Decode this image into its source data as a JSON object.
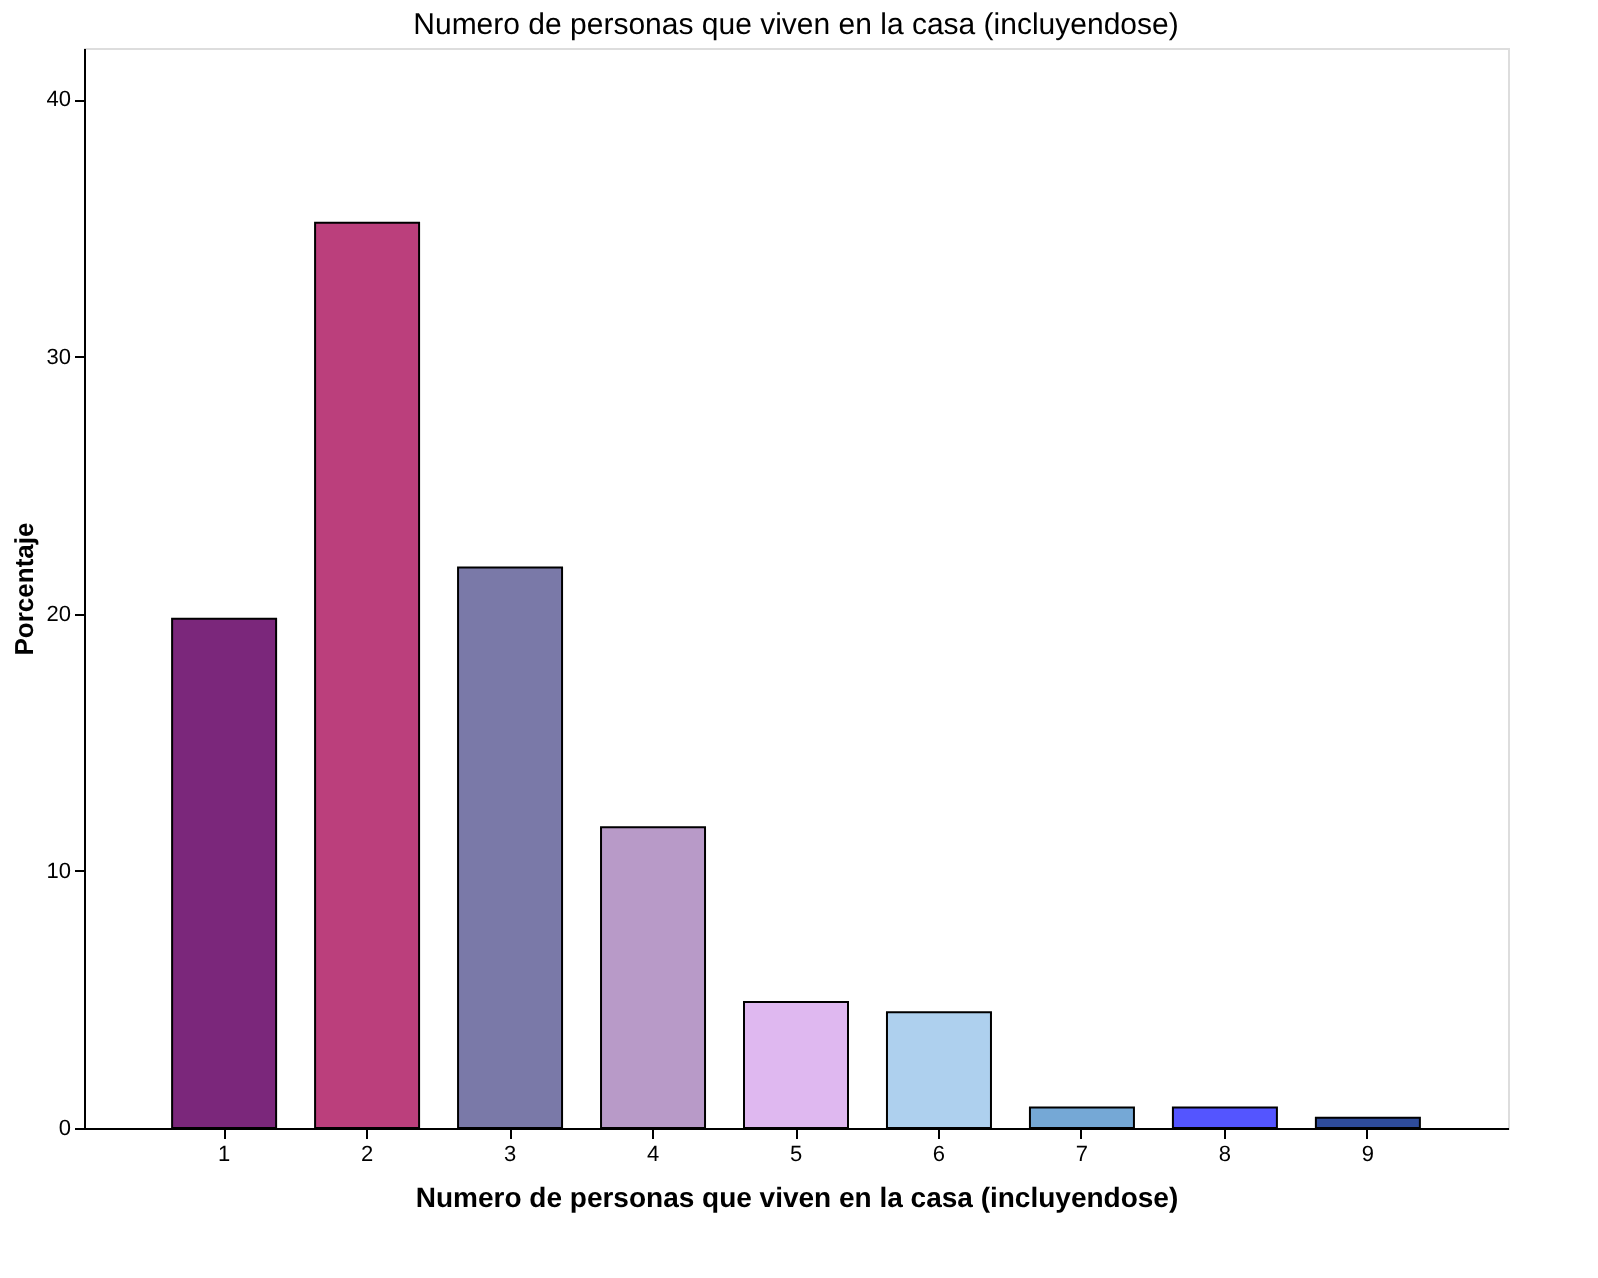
{
  "chart_data": {
    "type": "bar",
    "title": "Numero de personas que viven en la casa (incluyendose)",
    "xlabel": "Numero de personas que viven en la casa (incluyendose)",
    "ylabel": "Porcentaje",
    "categories": [
      "1",
      "2",
      "3",
      "4",
      "5",
      "6",
      "7",
      "8",
      "9"
    ],
    "values": [
      19.8,
      35.2,
      21.8,
      11.7,
      4.9,
      4.5,
      0.8,
      0.8,
      0.4
    ],
    "colors": [
      "#7b277b",
      "#bb3f7c",
      "#7a79a8",
      "#b89ac8",
      "#dfb8f0",
      "#aed0ee",
      "#75a8d6",
      "#5455ff",
      "#2e4b9a"
    ],
    "ylim": [
      0,
      42
    ],
    "yticks": [
      0,
      10,
      20,
      30,
      40
    ],
    "grid": false,
    "legend": false
  }
}
